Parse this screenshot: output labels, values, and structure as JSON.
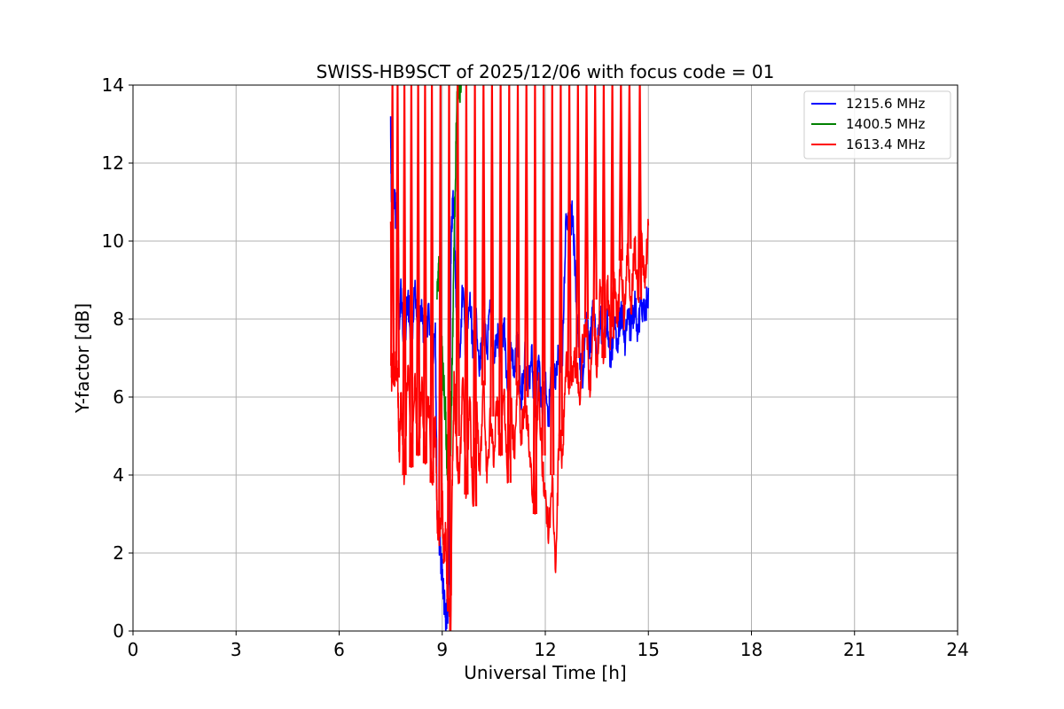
{
  "chart_data": {
    "type": "line",
    "title": "SWISS-HB9SCT of 2025/12/06 with focus code = 01",
    "xlabel": "Universal Time [h]",
    "ylabel": "Y-factor [dB]",
    "xlim": [
      0,
      24
    ],
    "ylim": [
      0,
      14
    ],
    "xticks": [
      0,
      3,
      6,
      9,
      12,
      15,
      18,
      21,
      24
    ],
    "yticks": [
      0,
      2,
      4,
      6,
      8,
      10,
      12,
      14
    ],
    "grid": true,
    "legend_position": "top-right",
    "series": [
      {
        "name": "1215.6 MHz",
        "color": "#0000ff",
        "x": [
          7.5,
          7.52,
          7.55,
          7.6,
          7.65,
          7.7,
          7.75,
          7.8,
          7.9,
          8.0,
          8.1,
          8.2,
          8.3,
          8.4,
          8.5,
          8.6,
          8.7,
          8.8,
          8.85,
          8.9,
          8.95,
          9.0,
          9.05,
          9.1,
          9.15,
          9.2,
          9.25,
          9.3,
          9.35,
          9.4,
          9.5,
          9.6,
          9.7,
          9.8,
          9.9,
          10.0,
          10.1,
          10.2,
          10.3,
          10.4,
          10.5,
          10.6,
          10.7,
          10.8,
          10.9,
          11.0,
          11.1,
          11.2,
          11.3,
          11.4,
          11.5,
          11.6,
          11.7,
          11.8,
          11.9,
          12.0,
          12.1,
          12.2,
          12.3,
          12.4,
          12.5,
          12.6,
          12.7,
          12.8,
          12.9,
          13.0,
          13.1,
          13.2,
          13.3,
          13.4,
          13.5,
          13.6,
          13.7,
          13.8,
          13.9,
          14.0,
          14.1,
          14.2,
          14.3,
          14.4,
          14.5,
          14.6,
          14.7,
          14.8,
          14.9,
          15.0
        ],
        "y": [
          13.2,
          11.0,
          10.8,
          11.1,
          10.7,
          10.9,
          8.0,
          8.8,
          7.2,
          8.6,
          7.4,
          8.7,
          7.1,
          8.5,
          7.0,
          8.4,
          6.8,
          7.9,
          3.0,
          2.5,
          2.0,
          1.5,
          0.8,
          0.2,
          0.5,
          1.2,
          9.5,
          11.0,
          10.8,
          8.3,
          7.0,
          8.8,
          6.9,
          8.5,
          7.3,
          8.0,
          6.7,
          7.9,
          7.1,
          8.2,
          6.9,
          7.6,
          7.0,
          8.0,
          6.2,
          7.4,
          6.5,
          7.6,
          5.8,
          7.2,
          6.0,
          7.3,
          5.5,
          7.0,
          5.8,
          6.5,
          5.5,
          7.0,
          6.2,
          7.2,
          6.8,
          10.7,
          10.5,
          10.6,
          8.5,
          7.0,
          6.5,
          8.0,
          7.2,
          8.3,
          7.0,
          8.2,
          7.2,
          8.0,
          6.8,
          7.8,
          7.5,
          8.3,
          7.4,
          8.0,
          7.8,
          8.4,
          7.6,
          8.5,
          8.0,
          8.8
        ]
      },
      {
        "name": "1400.5 MHz",
        "color": "#008000",
        "x": [
          8.85,
          8.9,
          8.95,
          9.0,
          9.05,
          9.1,
          9.15,
          9.2,
          9.25,
          9.3,
          9.35,
          9.4,
          9.45,
          9.5,
          9.55
        ],
        "y": [
          8.5,
          9.6,
          8.0,
          7.0,
          6.2,
          5.5,
          4.0,
          6.0,
          4.5,
          7.5,
          10.0,
          12.5,
          14.0,
          14.0,
          14.0
        ]
      },
      {
        "name": "1613.4 MHz",
        "color": "#ff0000",
        "x": [
          7.5,
          7.52,
          7.55,
          7.6,
          7.65,
          7.7,
          7.75,
          7.8,
          7.9,
          8.0,
          8.1,
          8.2,
          8.3,
          8.4,
          8.5,
          8.6,
          8.7,
          8.8,
          8.85,
          8.9,
          8.95,
          9.0,
          9.05,
          9.1,
          9.15,
          9.2,
          9.25,
          9.3,
          9.35,
          9.4,
          9.5,
          9.6,
          9.7,
          9.8,
          9.9,
          10.0,
          10.1,
          10.2,
          10.3,
          10.4,
          10.5,
          10.6,
          10.7,
          10.8,
          10.9,
          11.0,
          11.1,
          11.2,
          11.3,
          11.4,
          11.5,
          11.6,
          11.7,
          11.8,
          11.9,
          12.0,
          12.1,
          12.2,
          12.3,
          12.4,
          12.5,
          12.6,
          12.7,
          12.8,
          12.9,
          13.0,
          13.1,
          13.2,
          13.3,
          13.4,
          13.5,
          13.6,
          13.7,
          13.8,
          13.9,
          14.0,
          14.1,
          14.2,
          14.3,
          14.4,
          14.5,
          14.6,
          14.7,
          14.8,
          14.9,
          15.0
        ],
        "y": [
          10.5,
          6.5,
          6.8,
          6.6,
          6.8,
          6.5,
          4.5,
          6.0,
          4.0,
          6.8,
          4.2,
          6.5,
          4.5,
          6.3,
          4.3,
          6.0,
          3.8,
          5.5,
          3.0,
          2.5,
          2.8,
          3.5,
          1.8,
          2.5,
          1.0,
          0.5,
          0.0,
          4.5,
          6.5,
          5.0,
          3.8,
          6.5,
          3.5,
          6.0,
          3.2,
          5.8,
          4.0,
          6.3,
          3.8,
          5.5,
          4.2,
          6.0,
          4.5,
          6.2,
          3.8,
          5.8,
          4.5,
          6.3,
          5.0,
          6.0,
          5.0,
          4.0,
          3.0,
          6.5,
          4.5,
          3.5,
          2.5,
          4.0,
          1.5,
          5.0,
          4.5,
          6.8,
          6.5,
          6.8,
          7.0,
          5.8,
          7.5,
          8.0,
          6.0,
          8.5,
          6.5,
          8.8,
          7.0,
          9.0,
          7.5,
          9.2,
          7.8,
          9.5,
          8.0,
          9.8,
          8.3,
          10.0,
          8.5,
          10.2,
          8.8,
          10.4
        ]
      }
    ],
    "red_spikes_x": [
      7.55,
      7.7,
      7.9,
      8.1,
      8.3,
      8.5,
      8.7,
      8.95,
      9.2,
      9.45,
      9.7,
      9.95,
      10.2,
      10.45,
      10.7,
      10.95,
      11.2,
      11.45,
      11.7,
      11.95,
      12.2,
      12.45,
      12.7,
      12.95,
      13.2,
      13.45,
      13.7,
      13.95,
      14.2,
      14.45,
      14.75
    ]
  }
}
